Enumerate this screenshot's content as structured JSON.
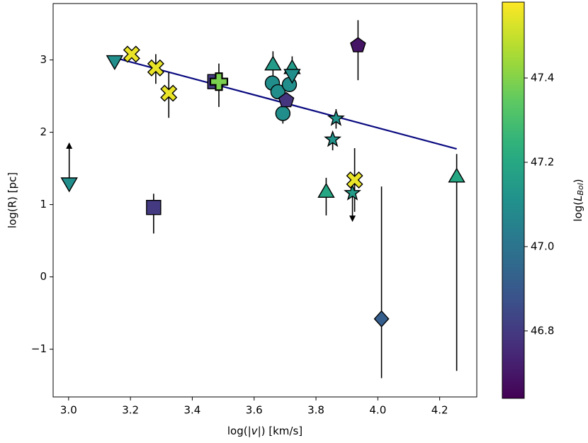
{
  "chart_data": {
    "type": "scatter",
    "xlabel": [
      "log(|",
      "v",
      "|) [km/s]"
    ],
    "ylabel": "log(R) [pc]",
    "colorbar_label": [
      "log(",
      "L",
      "Bol",
      ")"
    ],
    "colormap": "viridis",
    "xlim": [
      2.95,
      4.32
    ],
    "ylim": [
      -1.66,
      3.78
    ],
    "clim": [
      46.64,
      47.58
    ],
    "xticks": [
      {
        "value": 3,
        "label": "3.0"
      },
      3.2,
      3.4,
      3.6,
      3.8,
      {
        "value": 4,
        "label": "4.0"
      },
      4.2
    ],
    "yticks": [
      {
        "value": -1,
        "label": "−1"
      },
      0,
      1,
      2,
      3
    ],
    "cticks": [
      46.8,
      {
        "value": 47,
        "label": "47.0"
      },
      47.2,
      47.4
    ],
    "x": [
      3.002,
      3.149,
      3.204,
      3.282,
      3.324,
      3.275,
      3.473,
      3.486,
      3.661,
      3.659,
      3.677,
      3.714,
      3.693,
      3.704,
      3.723,
      3.723,
      3.865,
      3.854,
      3.833,
      3.918,
      3.925,
      3.936,
      4.012,
      4.255
    ],
    "y": [
      1.3,
      2.99,
      3.08,
      2.89,
      2.54,
      0.96,
      2.7,
      2.7,
      2.93,
      2.68,
      2.56,
      2.66,
      2.26,
      2.44,
      2.88,
      2.8,
      2.19,
      1.9,
      1.17,
      1.16,
      1.34,
      3.2,
      -0.58,
      1.38
    ],
    "c": [
      47.1,
      47.1,
      47.55,
      47.55,
      47.55,
      46.8,
      46.8,
      47.39,
      47.15,
      47.1,
      47.1,
      47.1,
      47.1,
      46.78,
      47.15,
      47.1,
      47.12,
      47.12,
      47.2,
      47.15,
      47.55,
      46.69,
      46.92,
      47.2
    ],
    "markers": [
      "triangle_down",
      "triangle_down",
      "X",
      "X",
      "X",
      "square",
      "square",
      "plus",
      "triangle_up",
      "circle",
      "circle",
      "circle",
      "circle",
      "pentagon",
      "triangle_up",
      "triangle_down",
      "star",
      "star",
      "triangle_up",
      "star",
      "X",
      "pentagon",
      "diamond",
      "triangle_up"
    ],
    "yerr_lo": [
      null,
      null,
      null,
      2.67,
      2.2,
      0.6,
      null,
      2.35,
      2.65,
      null,
      null,
      null,
      2.12,
      null,
      2.75,
      null,
      2.05,
      1.75,
      0.85,
      0.78,
      0.9,
      2.72,
      -1.4,
      -1.3
    ],
    "yerr_hi": [
      1.84,
      null,
      null,
      3.08,
      2.83,
      1.15,
      null,
      2.95,
      3.12,
      null,
      null,
      null,
      null,
      null,
      3.05,
      null,
      2.32,
      2.0,
      1.37,
      null,
      1.78,
      3.55,
      1.25,
      1.7
    ],
    "limits": [
      "lower",
      null,
      null,
      null,
      null,
      null,
      null,
      null,
      null,
      null,
      null,
      null,
      null,
      null,
      null,
      null,
      null,
      null,
      null,
      "upper",
      null,
      null,
      null,
      null
    ],
    "fit": {
      "x": [
        3.15,
        4.255
      ],
      "y": [
        3.03,
        1.77
      ],
      "color": "#0a0a80"
    }
  }
}
